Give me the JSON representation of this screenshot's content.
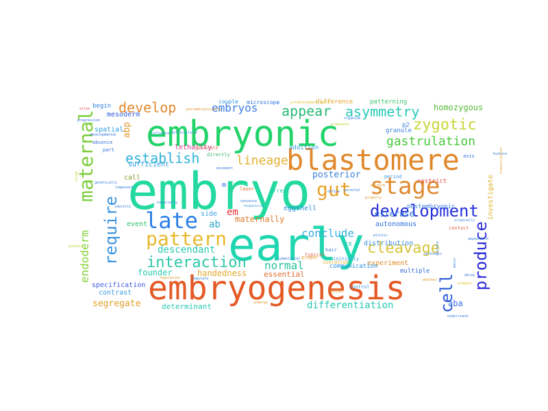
{
  "words": [
    {
      "text": "embryo",
      "color": "#23d9a0"
    },
    {
      "text": "embryonic",
      "color": "#22d36a"
    },
    {
      "text": "early",
      "color": "#1fd6b0"
    },
    {
      "text": "embryogenesis",
      "color": "#e45a26"
    },
    {
      "text": "blastomere",
      "color": "#e0892c"
    },
    {
      "text": "stage",
      "color": "#e08a2e"
    },
    {
      "text": "maternal",
      "color": "#7ccd3a"
    },
    {
      "text": "late",
      "color": "#2a7ee8"
    },
    {
      "text": "pattern",
      "color": "#e8b82c"
    },
    {
      "text": "gut",
      "color": "#e8a12a"
    },
    {
      "text": "development",
      "color": "#2430d8"
    },
    {
      "text": "require",
      "color": "#3a93e0"
    },
    {
      "text": "interaction",
      "color": "#2cc7a6"
    },
    {
      "text": "zygotic",
      "color": "#c9d63a"
    },
    {
      "text": "develop",
      "color": "#e08a2e"
    },
    {
      "text": "establish",
      "color": "#2fb0d9"
    },
    {
      "text": "asymmetry",
      "color": "#28c9b8"
    },
    {
      "text": "appear",
      "color": "#2ab97a"
    },
    {
      "text": "embryos",
      "color": "#3a7be6"
    },
    {
      "text": "gastrulation",
      "color": "#48c93c"
    },
    {
      "text": "cleavage",
      "color": "#d6c43a"
    },
    {
      "text": "produce",
      "color": "#2a2ad6"
    },
    {
      "text": "cell",
      "color": "#2a58d6"
    },
    {
      "text": "lineage",
      "color": "#e2b030"
    },
    {
      "text": "conclude",
      "color": "#3ab0e0"
    },
    {
      "text": "descendant",
      "color": "#2ac8b0"
    },
    {
      "text": "normal",
      "color": "#2ac49a"
    },
    {
      "text": "endoderm",
      "color": "#86d33a"
    },
    {
      "text": "posterior",
      "color": "#3a80e0"
    },
    {
      "text": "em",
      "color": "#e43030"
    },
    {
      "text": "ab",
      "color": "#2aa6c8"
    },
    {
      "text": "abp",
      "color": "#e0962a"
    },
    {
      "text": "homozygous",
      "color": "#58b83a"
    },
    {
      "text": "maternally",
      "color": "#e07a2a"
    },
    {
      "text": "esterase",
      "color": "#2a70d6"
    },
    {
      "text": "differentiation",
      "color": "#2ac8b0"
    },
    {
      "text": "founder",
      "color": "#2ac8b0"
    },
    {
      "text": "handedness",
      "color": "#e0a82a"
    },
    {
      "text": "essential",
      "color": "#e06a2a"
    },
    {
      "text": "segregate",
      "color": "#e0a02a"
    },
    {
      "text": "determinant",
      "color": "#2ac8b0"
    },
    {
      "text": "specification",
      "color": "#3a5ae0"
    },
    {
      "text": "contrast",
      "color": "#3a9ae0"
    },
    {
      "text": "experiment",
      "color": "#e08a2a"
    },
    {
      "text": "distribution",
      "color": "#3a90e0"
    },
    {
      "text": "aba",
      "color": "#3a70e0"
    },
    {
      "text": "mesoderm",
      "color": "#2a5ae0"
    },
    {
      "text": "begin",
      "color": "#2a80e0"
    },
    {
      "text": "spatial",
      "color": "#2a9ae0"
    },
    {
      "text": "call",
      "color": "#8a9a2a"
    },
    {
      "text": "event",
      "color": "#2ac06a"
    },
    {
      "text": "sufficient",
      "color": "#2a9ae0"
    },
    {
      "text": "lethality",
      "color": "#c83a8a"
    },
    {
      "text": "side",
      "color": "#3aa0e0"
    },
    {
      "text": "m",
      "color": "#2a6ae0"
    },
    {
      "text": "eggshell",
      "color": "#2a90e0"
    },
    {
      "text": "autonomous",
      "color": "#2a70e0"
    },
    {
      "text": "postembryonic",
      "color": "#3a80e0"
    },
    {
      "text": "restrict",
      "color": "#e04a4a"
    },
    {
      "text": "granule",
      "color": "#3a80e0"
    },
    {
      "text": "p2",
      "color": "#3a80e0"
    },
    {
      "text": "investigate",
      "color": "#e0b02a"
    },
    {
      "text": "ax",
      "color": "#2ac8b0"
    },
    {
      "text": "communication",
      "color": "#2a90e0"
    },
    {
      "text": "multiple",
      "color": "#3a6ae0"
    },
    {
      "text": "arrest",
      "color": "#2ac8b0"
    },
    {
      "text": "addition",
      "color": "#3aa0e0"
    },
    {
      "text": "difference",
      "color": "#e0a02a"
    },
    {
      "text": "patterning",
      "color": "#3ac06a"
    },
    {
      "text": "couple",
      "color": "#2a90e0"
    },
    {
      "text": "microscope",
      "color": "#2a70e0"
    },
    {
      "text": "generate",
      "color": "#e06a6a"
    },
    {
      "text": "directly",
      "color": "#3ab06a"
    },
    {
      "text": "period",
      "color": "#3a9ae0"
    },
    {
      "text": "occur",
      "color": "#e0a02a"
    },
    {
      "text": "proper",
      "color": "#e0a02a"
    },
    {
      "text": "contact",
      "color": "#e06a4a"
    },
    {
      "text": "control",
      "color": "#3a9ae0"
    },
    {
      "text": "axis",
      "color": "#3a70e0"
    },
    {
      "text": "absence",
      "color": "#3a70e0"
    },
    {
      "text": "part",
      "color": "#3a70e0"
    },
    {
      "text": "laser",
      "color": "#e06a2a"
    },
    {
      "text": "hair",
      "color": "#3a80e0"
    },
    {
      "text": "typical",
      "color": "#e06a4a"
    },
    {
      "text": "initially",
      "color": "#3a9ae0"
    },
    {
      "text": "isolation",
      "color": "#e0b02a"
    },
    {
      "text": "regulate",
      "color": "#2a80e0"
    },
    {
      "text": "undergo",
      "color": "#e0962a"
    },
    {
      "text": "decay",
      "color": "#3a80e0"
    },
    {
      "text": "elegans",
      "color": "#e0c02a"
    },
    {
      "text": "major",
      "color": "#3a80e0"
    },
    {
      "text": "study",
      "color": "#c0d02a"
    },
    {
      "text": "perform",
      "color": "#e0962a"
    },
    {
      "text": "define",
      "color": "#3a80e0"
    },
    {
      "text": "parental",
      "color": "#3a80e0"
    },
    {
      "text": "prominent",
      "color": "#c0d02a"
    },
    {
      "text": "progression",
      "color": "#2a6ae0"
    },
    {
      "text": "developmental",
      "color": "#2a6ae0"
    },
    {
      "text": "influence",
      "color": "#3a80e0"
    },
    {
      "text": "genetically",
      "color": "#3a80e0"
    },
    {
      "text": "component",
      "color": "#2a80e0"
    },
    {
      "text": "movement",
      "color": "#3a80e0"
    },
    {
      "text": "especially",
      "color": "#3a80e0"
    },
    {
      "text": "identify",
      "color": "#3a80e0"
    },
    {
      "text": "responsive",
      "color": "#3a9ae0"
    },
    {
      "text": "nonsense",
      "color": "#3a80e0"
    },
    {
      "text": "symmetrical",
      "color": "#3a80e0"
    },
    {
      "text": "regulation",
      "color": "#e0962a"
    },
    {
      "text": "originally",
      "color": "#3a80e0"
    },
    {
      "text": "spindle",
      "color": "#3a80e0"
    },
    {
      "text": "understand",
      "color": "#3a80e0"
    },
    {
      "text": "establishment rapid",
      "color": "#e0c02a"
    },
    {
      "text": "feature",
      "color": "#3a80e0"
    },
    {
      "text": "transcription",
      "color": "#e0962a"
    },
    {
      "text": "arise",
      "color": "#e04a4a"
    },
    {
      "text": "synthesis",
      "color": "#3a80e0"
    },
    {
      "text": "property",
      "color": "#e0962a"
    },
    {
      "text": "multicellular",
      "color": "#3a80e0"
    },
    {
      "text": "postembryonically",
      "color": "#e0962a"
    },
    {
      "text": "appearance",
      "color": "#3a80e0"
    },
    {
      "text": "organism",
      "color": "#3a80e0"
    },
    {
      "text": "mitotic",
      "color": "#3a80e0"
    },
    {
      "text": "preface",
      "color": "#c0d02a"
    },
    {
      "text": "whether",
      "color": "#e0962a"
    }
  ]
}
